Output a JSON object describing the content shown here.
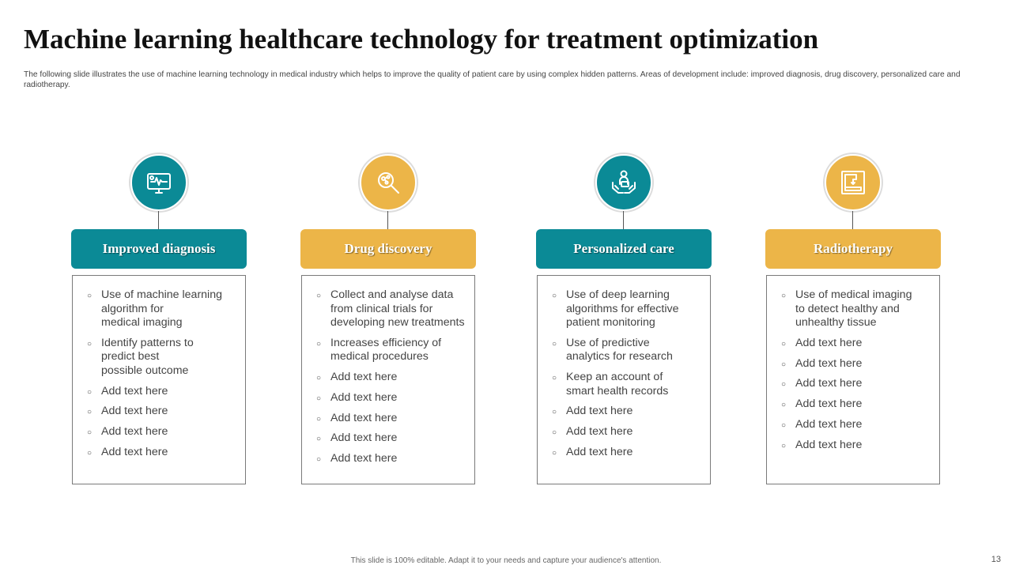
{
  "slide": {
    "title": "Machine learning healthcare technology for treatment  optimization",
    "subtitle": "The following slide illustrates the use of machine learning technology in medical industry which helps to improve the quality of patient care by using complex hidden patterns. Areas of development include: improved diagnosis, drug discovery, personalized care and radiotherapy.",
    "footer": "This slide is 100% editable.  Adapt it to your needs and capture your audience's attention.",
    "page_number": "13"
  },
  "colors": {
    "teal": "#0b8a96",
    "gold": "#ecb548"
  },
  "columns": [
    {
      "heading": "Improved diagnosis",
      "icon": "monitor-heartbeat-icon",
      "color": "teal",
      "items": [
        "Use of machine learning\nalgorithm for\nmedical imaging",
        "Identify patterns to\npredict best\npossible outcome",
        "Add text here",
        "Add text here",
        "Add text here",
        "Add text here"
      ]
    },
    {
      "heading": "Drug discovery",
      "icon": "magnifier-molecule-icon",
      "color": "gold",
      "items": [
        "Collect and analyse data\nfrom clinical trials for\ndeveloping new treatments",
        "Increases efficiency of\nmedical procedures",
        "Add text here",
        "Add text here",
        "Add text here",
        "Add text here",
        "Add text here"
      ]
    },
    {
      "heading": "Personalized care",
      "icon": "hands-care-person-icon",
      "color": "teal",
      "items": [
        "Use of deep learning\nalgorithms for effective\npatient monitoring",
        "Use of predictive\nanalytics for research",
        "Keep an account of\nsmart health records",
        "Add text here",
        "Add text here",
        "Add  text here"
      ]
    },
    {
      "heading": "Radiotherapy",
      "icon": "radiotherapy-machine-icon",
      "color": "gold",
      "items": [
        "Use of medical imaging\nto detect healthy and\nunhealthy tissue",
        "Add text here",
        "Add text here",
        "Add text here",
        "Add text here",
        "Add text here",
        "Add text here"
      ]
    }
  ]
}
